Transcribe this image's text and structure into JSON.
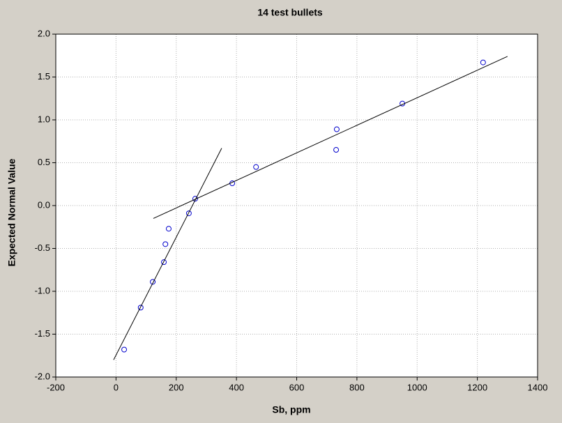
{
  "chart_data": {
    "type": "scatter",
    "title": "14 test bullets",
    "xlabel": "Sb, ppm",
    "ylabel": "Expected Normal Value",
    "xlim": [
      -200,
      1400
    ],
    "ylim": [
      -2,
      2
    ],
    "xticks": [
      -200,
      0,
      200,
      400,
      600,
      800,
      1000,
      1200,
      1400
    ],
    "yticks": [
      {
        "value": -2,
        "label": "-2.0"
      },
      -1.5,
      {
        "value": -1,
        "label": "-1.0"
      },
      -0.5,
      {
        "value": 0,
        "label": "0.0"
      },
      0.5,
      {
        "value": 1,
        "label": "1.0"
      },
      1.5,
      {
        "value": 2,
        "label": "2.0"
      }
    ],
    "grid": true,
    "series": [
      {
        "kind": "points",
        "color": "#0000cc",
        "x": [
          27,
          82,
          122,
          159,
          164,
          175,
          242,
          263,
          386,
          465,
          731,
          733,
          951,
          1219
        ],
        "values": [
          -1.68,
          -1.19,
          -0.89,
          -0.66,
          -0.45,
          -0.27,
          -0.09,
          0.08,
          0.26,
          0.45,
          0.65,
          0.89,
          1.19,
          1.67
        ]
      },
      {
        "kind": "line",
        "color": "#000000",
        "x": [
          -8,
          351
        ],
        "values": [
          -1.8,
          0.67
        ]
      },
      {
        "kind": "line",
        "color": "#000000",
        "x": [
          124,
          1300
        ],
        "values": [
          -0.15,
          1.74
        ]
      }
    ]
  }
}
